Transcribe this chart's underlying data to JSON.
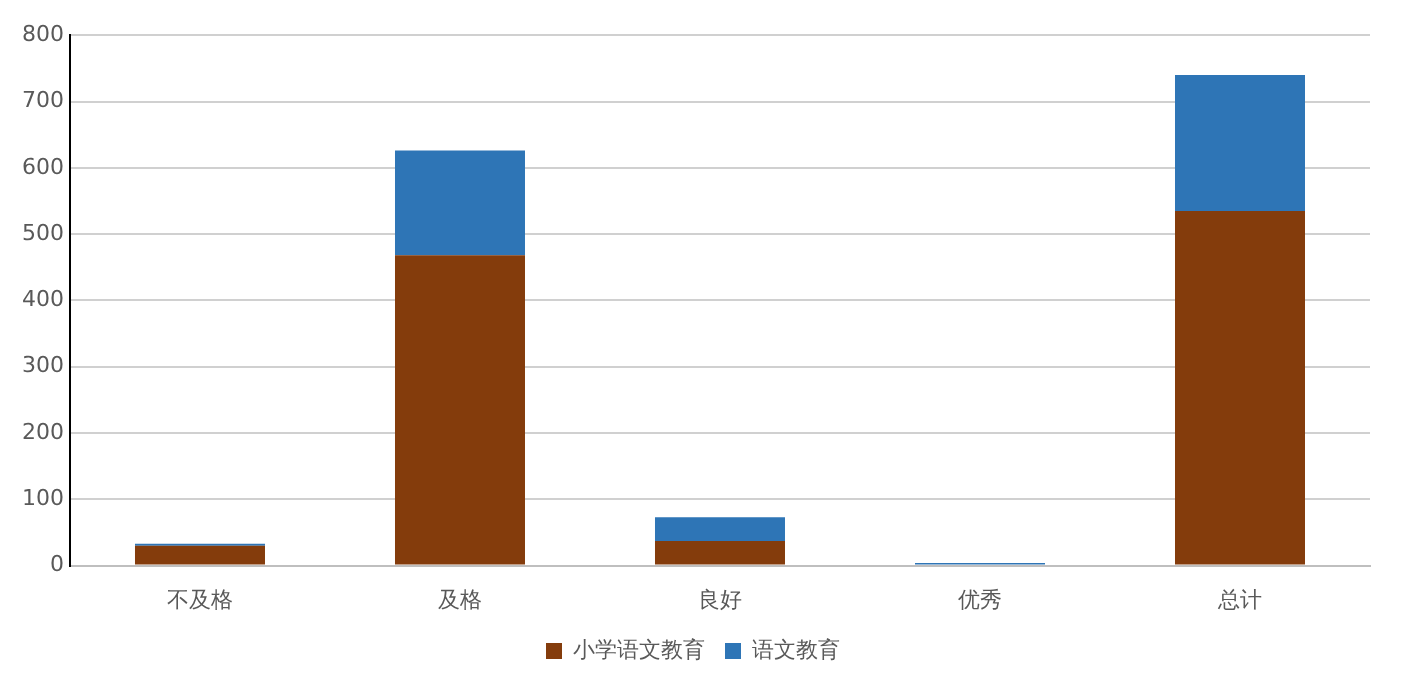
{
  "chart_data": {
    "type": "bar",
    "stacked": true,
    "categories": [
      "不及格",
      "及格",
      "良好",
      "优秀",
      "总计"
    ],
    "series": [
      {
        "name": "小学语文教育",
        "color": "#843c0c",
        "values": [
          30,
          468,
          37,
          0,
          535
        ]
      },
      {
        "name": "语文教育",
        "color": "#2e75b6",
        "values": [
          3,
          158,
          36,
          4,
          205
        ]
      }
    ],
    "ylim": [
      0,
      800
    ],
    "yticks": [
      0,
      100,
      200,
      300,
      400,
      500,
      600,
      700,
      800
    ],
    "grid": "y",
    "legend": "bottom"
  }
}
